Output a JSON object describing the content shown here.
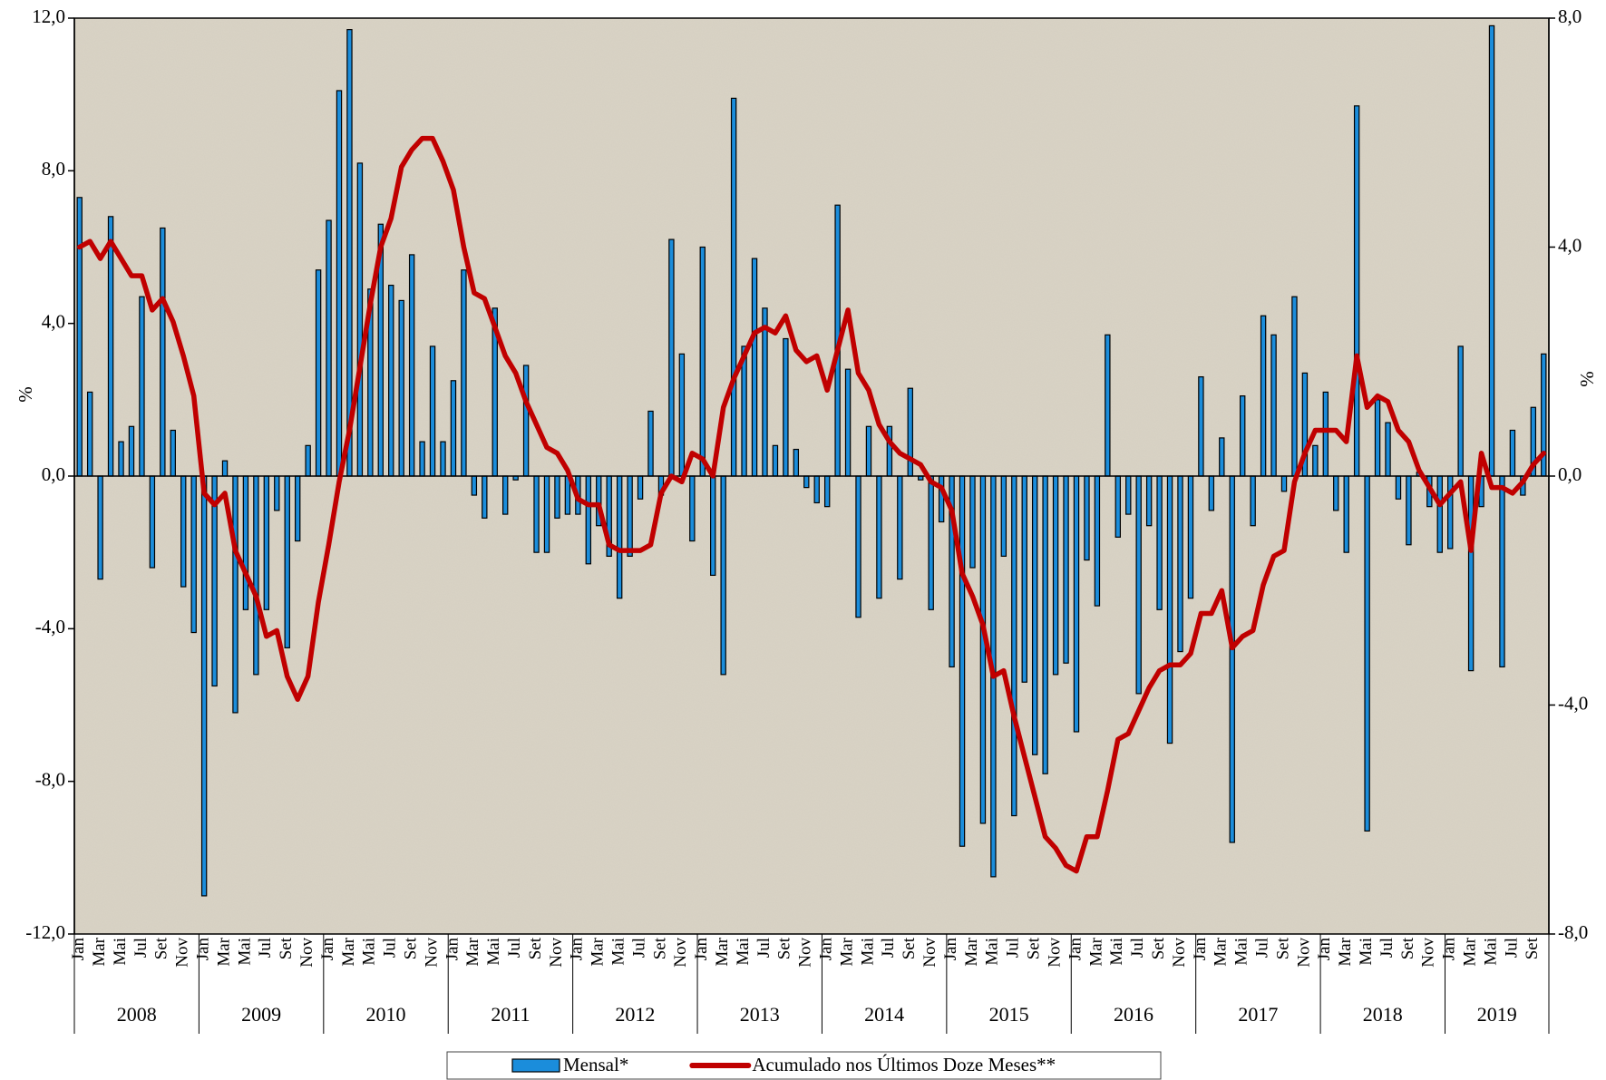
{
  "chart_data": {
    "type": "bar",
    "categories": [
      "Jan",
      null,
      "Mar",
      null,
      "Mai",
      null,
      "Jul",
      null,
      "Set",
      null,
      "Nov",
      null,
      "Jan",
      null,
      "Mar",
      null,
      "Mai",
      null,
      "Jul",
      null,
      "Set",
      null,
      "Nov",
      null,
      "Jan",
      null,
      "Mar",
      null,
      "Mai",
      null,
      "Jul",
      null,
      "Set",
      null,
      "Nov",
      null,
      "Jan",
      null,
      "Mar",
      null,
      "Mai",
      null,
      "Jul",
      null,
      "Set",
      null,
      "Nov",
      null,
      "Jan",
      null,
      "Mar",
      null,
      "Mai",
      null,
      "Jul",
      null,
      "Set",
      null,
      "Nov",
      null,
      "Jan",
      null,
      "Mar",
      null,
      "Mai",
      null,
      "Jul",
      null,
      "Set",
      null,
      "Nov",
      null,
      "Jan",
      null,
      "Mar",
      null,
      "Mai",
      null,
      "Jul",
      null,
      "Set",
      null,
      "Nov",
      null,
      "Jan",
      null,
      "Mar",
      null,
      "Mai",
      null,
      "Jul",
      null,
      "Set",
      null,
      "Nov",
      null,
      "Jan",
      null,
      "Mar",
      null,
      "Mai",
      null,
      "Jul",
      null,
      "Set",
      null,
      "Nov",
      null,
      "Jan",
      null,
      "Mar",
      null,
      "Mai",
      null,
      "Jul",
      null,
      "Set",
      null,
      "Nov",
      null,
      "Jan",
      null,
      "Mar",
      null,
      "Mai",
      null,
      "Jul",
      null,
      "Set",
      null,
      "Nov",
      null,
      "Jan",
      null,
      "Mar",
      null,
      "Mai",
      null,
      "Jul",
      null,
      "Set",
      null
    ],
    "year_groups": [
      "2008",
      "2009",
      "2010",
      "2011",
      "2012",
      "2013",
      "2014",
      "2015",
      "2016",
      "2017",
      "2018",
      "2019"
    ],
    "series": [
      {
        "name": "Mensal*",
        "color": "#1b8ddb",
        "values": [
          7.3,
          2.2,
          -2.7,
          6.8,
          0.9,
          1.3,
          4.7,
          -2.4,
          6.5,
          1.2,
          -2.9,
          -4.1,
          -11.0,
          -5.5,
          0.4,
          -6.2,
          -3.5,
          -5.2,
          -3.5,
          -0.9,
          -4.5,
          -1.7,
          0.8,
          5.4,
          6.7,
          10.1,
          11.7,
          8.2,
          4.9,
          6.6,
          5.0,
          4.6,
          5.8,
          0.9,
          3.4,
          0.9,
          2.5,
          5.4,
          -0.5,
          -1.1,
          4.4,
          -1.0,
          -0.1,
          2.9,
          -2.0,
          -2.0,
          -1.1,
          -1.0,
          -1.0,
          -2.3,
          -1.3,
          -2.1,
          -3.2,
          -2.1,
          -0.6,
          1.7,
          -0.5,
          6.2,
          3.2,
          -1.7,
          6.0,
          -2.6,
          -5.2,
          9.9,
          3.4,
          5.7,
          4.4,
          0.8,
          3.6,
          0.7,
          -0.3,
          -0.7,
          -0.8,
          7.1,
          2.8,
          -3.7,
          1.3,
          -3.2,
          1.3,
          -2.7,
          2.3,
          -0.1,
          -3.5,
          -1.2,
          -5.0,
          -9.7,
          -2.4,
          -9.1,
          -10.5,
          -2.1,
          -8.9,
          -5.4,
          -7.3,
          -7.8,
          -5.2,
          -4.9,
          -6.7,
          -2.2,
          -3.4,
          3.7,
          -1.6,
          -1.0,
          -5.7,
          -1.3,
          -3.5,
          -7.0,
          -4.6,
          -3.2,
          2.6,
          -0.9,
          1.0,
          -9.6,
          2.1,
          -1.3,
          4.2,
          3.7,
          -0.4,
          4.7,
          2.7,
          0.8,
          2.2,
          -0.9,
          -2.0,
          9.7,
          -9.3,
          2.0,
          1.4,
          -0.6,
          -1.8,
          0.1,
          -0.8,
          -2.0,
          -1.9,
          3.4,
          -5.1,
          -0.8,
          11.8,
          -5.0,
          1.2,
          -0.5,
          1.8,
          3.2
        ]
      },
      {
        "name": "Acumulado nos Últimos Doze Meses**",
        "color": "#c00000",
        "type": "line",
        "axis": "y2",
        "values": [
          4.0,
          4.1,
          3.8,
          4.1,
          3.8,
          3.5,
          3.5,
          2.9,
          3.1,
          2.7,
          2.1,
          1.4,
          -0.3,
          -0.5,
          -0.3,
          -1.3,
          -1.7,
          -2.1,
          -2.8,
          -2.7,
          -3.5,
          -3.9,
          -3.5,
          -2.2,
          -1.2,
          -0.1,
          0.8,
          1.9,
          3.0,
          4.0,
          4.5,
          5.4,
          5.7,
          5.9,
          5.9,
          5.5,
          5.0,
          4.0,
          3.2,
          3.1,
          2.6,
          2.1,
          1.8,
          1.3,
          0.9,
          0.5,
          0.4,
          0.1,
          -0.4,
          -0.5,
          -0.5,
          -1.2,
          -1.3,
          -1.3,
          -1.3,
          -1.2,
          -0.3,
          0.0,
          -0.1,
          0.4,
          0.3,
          0.0,
          1.2,
          1.7,
          2.1,
          2.5,
          2.6,
          2.5,
          2.8,
          2.2,
          2.0,
          2.1,
          1.5,
          2.2,
          2.9,
          1.8,
          1.5,
          0.9,
          0.6,
          0.4,
          0.3,
          0.2,
          -0.1,
          -0.2,
          -0.6,
          -1.7,
          -2.1,
          -2.6,
          -3.5,
          -3.4,
          -4.2,
          -4.9,
          -5.6,
          -6.3,
          -6.5,
          -6.8,
          -6.9,
          -6.3,
          -6.3,
          -5.5,
          -4.6,
          -4.5,
          -4.1,
          -3.7,
          -3.4,
          -3.3,
          -3.3,
          -3.1,
          -2.4,
          -2.4,
          -2.0,
          -3.0,
          -2.8,
          -2.7,
          -1.9,
          -1.4,
          -1.3,
          -0.1,
          0.4,
          0.8,
          0.8,
          0.8,
          0.6,
          2.1,
          1.2,
          1.4,
          1.3,
          0.8,
          0.6,
          0.1,
          -0.2,
          -0.5,
          -0.3,
          -0.1,
          -1.3,
          0.4,
          -0.2,
          -0.2,
          -0.3,
          -0.1,
          0.2,
          0.4
        ]
      }
    ],
    "ylim": [
      -12,
      12
    ],
    "yticks": [
      {
        "value": -12,
        "label": "-12,0"
      },
      {
        "value": -8,
        "label": "-8,0"
      },
      {
        "value": -4,
        "label": "-4,0"
      },
      {
        "value": 0,
        "label": "0,0"
      },
      {
        "value": 4,
        "label": "4,0"
      },
      {
        "value": 8,
        "label": "8,0"
      },
      {
        "value": 12,
        "label": "12,0"
      }
    ],
    "y2lim": [
      -8,
      8
    ],
    "y2ticks": [
      {
        "value": -8,
        "label": "-8,0"
      },
      {
        "value": -4,
        "label": "-4,0"
      },
      {
        "value": 0,
        "label": "0,0"
      },
      {
        "value": 4,
        "label": "4,0"
      },
      {
        "value": 8,
        "label": "8,0"
      }
    ],
    "y_label": "%",
    "y2_label": "%",
    "grid": false,
    "legend": "bottom"
  }
}
